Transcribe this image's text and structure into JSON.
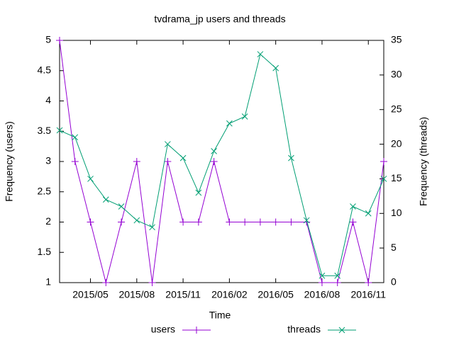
{
  "chart_data": {
    "type": "line",
    "title": "tvdrama_jp users and threads",
    "xlabel": "Time",
    "ylabel": "Frequency (users)",
    "y2label": "Frequency (threads)",
    "x": [
      "2015/03",
      "2015/04",
      "2015/05",
      "2015/06",
      "2015/07",
      "2015/08",
      "2015/09",
      "2015/10",
      "2015/11",
      "2015/12",
      "2016/01",
      "2016/02",
      "2016/03",
      "2016/04",
      "2016/05",
      "2016/06",
      "2016/07",
      "2016/08",
      "2016/09",
      "2016/10",
      "2016/11",
      "2016/12"
    ],
    "xticks": [
      "2015/05",
      "2015/08",
      "2015/11",
      "2016/02",
      "2016/05",
      "2016/08",
      "2016/11"
    ],
    "ylim": [
      1,
      5
    ],
    "yticks": [
      1,
      1.5,
      2,
      2.5,
      3,
      3.5,
      4,
      4.5,
      5
    ],
    "y2lim": [
      0,
      35
    ],
    "y2ticks": [
      0,
      5,
      10,
      15,
      20,
      25,
      30,
      35
    ],
    "legend": "bottom",
    "series": [
      {
        "name": "users",
        "color": "#9400d3",
        "marker": "+",
        "values": [
          5,
          3,
          2,
          1,
          2,
          3,
          1,
          3,
          2,
          2,
          3,
          2,
          2,
          2,
          2,
          2,
          2,
          1,
          1,
          2,
          1,
          3
        ]
      },
      {
        "name": "threads",
        "color": "#009e73",
        "marker": "x",
        "axis": "y2",
        "values": [
          22,
          21,
          15,
          12,
          11,
          9,
          8,
          20,
          18,
          13,
          19,
          23,
          24,
          33,
          31,
          18,
          9,
          1,
          1,
          11,
          10,
          15
        ]
      }
    ]
  }
}
